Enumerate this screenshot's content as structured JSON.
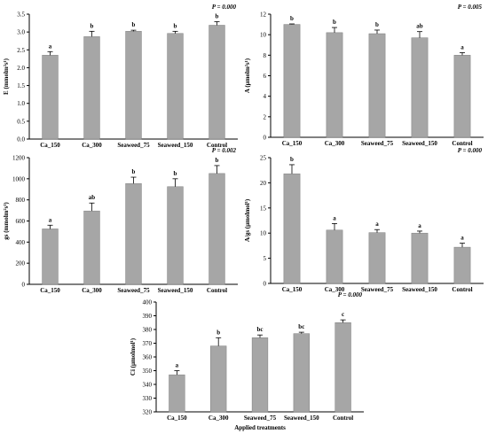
{
  "chart_data": [
    {
      "type": "bar",
      "categories": [
        "Ca_150",
        "Ca_300",
        "Seaweed_75",
        "Seaweed_150",
        "Control"
      ],
      "values": [
        2.35,
        2.87,
        3.02,
        2.96,
        3.19
      ],
      "errors": [
        0.1,
        0.15,
        0.03,
        0.06,
        0.1
      ],
      "letters": [
        "a",
        "b",
        "b",
        "b",
        "b"
      ],
      "p_value": "P = 0.000",
      "ylabel": "E (mmolm²s¹)",
      "ylim": [
        0,
        3.5
      ],
      "yticks": [
        "0.0",
        "0.5",
        "1.0",
        "1.5",
        "2.0",
        "2.5",
        "3.0",
        "3.5"
      ],
      "bar_color": "#a6a6a6",
      "xlabel": ""
    },
    {
      "type": "bar",
      "categories": [
        "Ca_150",
        "Ca_300",
        "Seaweed_75",
        "Seaweed_150",
        "Control"
      ],
      "values": [
        11.0,
        10.2,
        10.1,
        9.7,
        8.0
      ],
      "errors": [
        0.05,
        0.5,
        0.35,
        0.6,
        0.25
      ],
      "letters": [
        "b",
        "b",
        "b",
        "ab",
        "a"
      ],
      "p_value": "P = 0.005",
      "ylabel": "A (µmolm²s¹)",
      "ylim": [
        0,
        12
      ],
      "yticks": [
        "0",
        "2",
        "4",
        "6",
        "8",
        "10",
        "12"
      ],
      "bar_color": "#a6a6a6",
      "xlabel": ""
    },
    {
      "type": "bar",
      "categories": [
        "Ca_150",
        "Ca_300",
        "Seaweed_75",
        "Seaweed_150",
        "Control"
      ],
      "values": [
        525,
        695,
        955,
        925,
        1050
      ],
      "errors": [
        35,
        75,
        60,
        75,
        75
      ],
      "letters": [
        "a",
        "ab",
        "b",
        "b",
        "b"
      ],
      "p_value": "P = 0.002",
      "ylabel": "gs (mmolm²s¹)",
      "ylim": [
        0,
        1200
      ],
      "yticks": [
        "0",
        "200",
        "400",
        "600",
        "800",
        "1000",
        "1200"
      ],
      "bar_color": "#a6a6a6",
      "xlabel": ""
    },
    {
      "type": "bar",
      "categories": [
        "Ca_150",
        "Ca_300",
        "Seaweed_75",
        "Seaweed_150",
        "Control"
      ],
      "values": [
        21.8,
        10.6,
        10.1,
        10.0,
        7.2
      ],
      "errors": [
        1.8,
        1.3,
        0.6,
        0.4,
        0.8
      ],
      "letters": [
        "b",
        "a",
        "a",
        "a",
        "a"
      ],
      "p_value": "P = 0.000",
      "ylabel": "A/gs (µmolmol¹)",
      "ylim": [
        0,
        25
      ],
      "yticks": [
        "0",
        "5",
        "10",
        "15",
        "20",
        "25"
      ],
      "bar_color": "#a6a6a6",
      "xlabel": ""
    },
    {
      "type": "bar",
      "categories": [
        "Ca_150",
        "Ca_300",
        "Seaweed_75",
        "Seaweed_150",
        "Control"
      ],
      "values": [
        347,
        368,
        374,
        377,
        385
      ],
      "errors": [
        3,
        6,
        2,
        1,
        2
      ],
      "letters": [
        "a",
        "b",
        "bc",
        "bc",
        "c"
      ],
      "p_value": "P = 0.000",
      "ylabel": "Ci (µmolmol¹)",
      "ylim": [
        320,
        400
      ],
      "yticks": [
        "320",
        "330",
        "340",
        "350",
        "360",
        "370",
        "380",
        "390",
        "400"
      ],
      "bar_color": "#a6a6a6",
      "xlabel": "Applied treatments"
    }
  ]
}
